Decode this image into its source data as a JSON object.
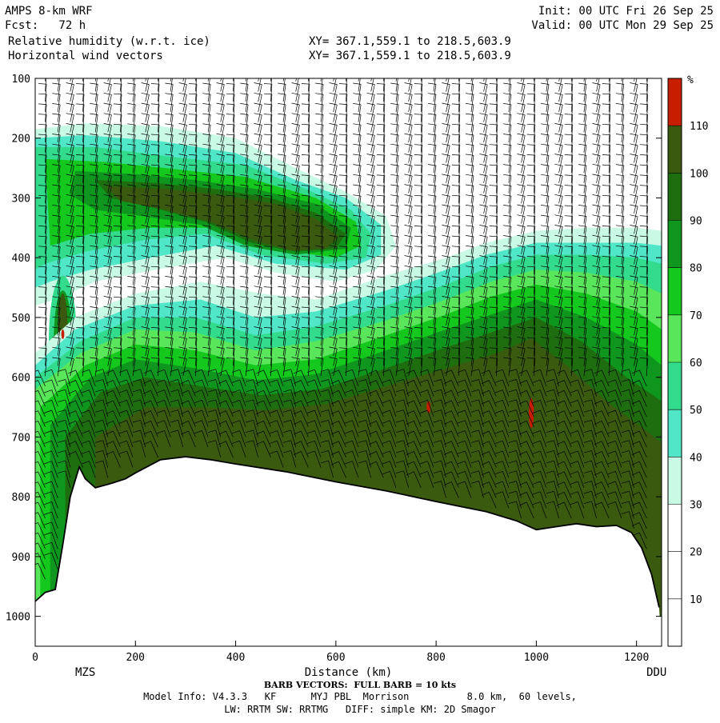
{
  "header": {
    "title": "AMPS 8-km WRF",
    "fcst": "Fcst:   72 h",
    "field1": "Relative humidity (w.r.t. ice)",
    "field2": "Horizontal wind vectors",
    "init": "Init: 00 UTC Fri 26 Sep 25",
    "valid": "Valid: 00 UTC Mon 29 Sep 25",
    "xy1": "XY= 367.1,559.1 to 218.5,603.9",
    "xy2": "XY= 367.1,559.1 to 218.5,603.9"
  },
  "footer": {
    "barb_note": "BARB VECTORS:  FULL BARB = 10 kts",
    "model_info_1": "Model Info: V4.3.3   KF      MYJ PBL  Morrison          8.0 km,  60 levels,",
    "model_info_2": "LW: RRTM SW: RRTMG   DIFF: simple KM: 2D Smagor"
  },
  "chart_data": {
    "type": "heatmap",
    "title": "Relative humidity (w.r.t. ice)",
    "xlabel": "Distance (km)",
    "ylabel": "",
    "x_ticks": [
      "0",
      "200",
      "400",
      "600",
      "800",
      "1000",
      "1200"
    ],
    "y_ticks": [
      "100",
      "200",
      "300",
      "400",
      "500",
      "600",
      "700",
      "800",
      "900",
      "1000"
    ],
    "xlim": [
      0,
      1250
    ],
    "ylim": [
      100,
      1050
    ],
    "x_endpoint_labels": [
      "MZS",
      "DDU"
    ],
    "colorbar": {
      "unit": "%",
      "levels": [
        "110",
        "100",
        "90",
        "80",
        "70",
        "60",
        "50",
        "40",
        "30",
        "20",
        "10"
      ],
      "colors": [
        "#c81e00",
        "#3a5a10",
        "#1e6e0f",
        "#0f961e",
        "#14c81e",
        "#5ae65a",
        "#32dc8c",
        "#50e6c8",
        "#c8fae6",
        "#ffffff",
        "#ffffff",
        "#ffffff"
      ]
    },
    "colors": {
      "c30_40": "#c8fae6",
      "c40_50": "#50e6c8",
      "c50_60": "#32dc8c",
      "c60_70": "#5ae65a",
      "c70_80": "#14c81e",
      "c80_90": "#0f961e",
      "c90_100": "#1e6e0f",
      "c100_110": "#3a5a10",
      "c110": "#c81e00"
    },
    "terrain": [
      [
        0,
        975
      ],
      [
        20,
        960
      ],
      [
        40,
        955
      ],
      [
        55,
        880
      ],
      [
        70,
        800
      ],
      [
        88,
        750
      ],
      [
        100,
        770
      ],
      [
        120,
        785
      ],
      [
        150,
        778
      ],
      [
        180,
        770
      ],
      [
        200,
        760
      ],
      [
        250,
        738
      ],
      [
        300,
        733
      ],
      [
        350,
        738
      ],
      [
        400,
        745
      ],
      [
        500,
        758
      ],
      [
        600,
        775
      ],
      [
        700,
        790
      ],
      [
        800,
        808
      ],
      [
        900,
        825
      ],
      [
        960,
        840
      ],
      [
        1000,
        855
      ],
      [
        1040,
        850
      ],
      [
        1080,
        845
      ],
      [
        1120,
        850
      ],
      [
        1160,
        848
      ],
      [
        1190,
        860
      ],
      [
        1210,
        885
      ],
      [
        1230,
        930
      ],
      [
        1245,
        985
      ]
    ]
  }
}
